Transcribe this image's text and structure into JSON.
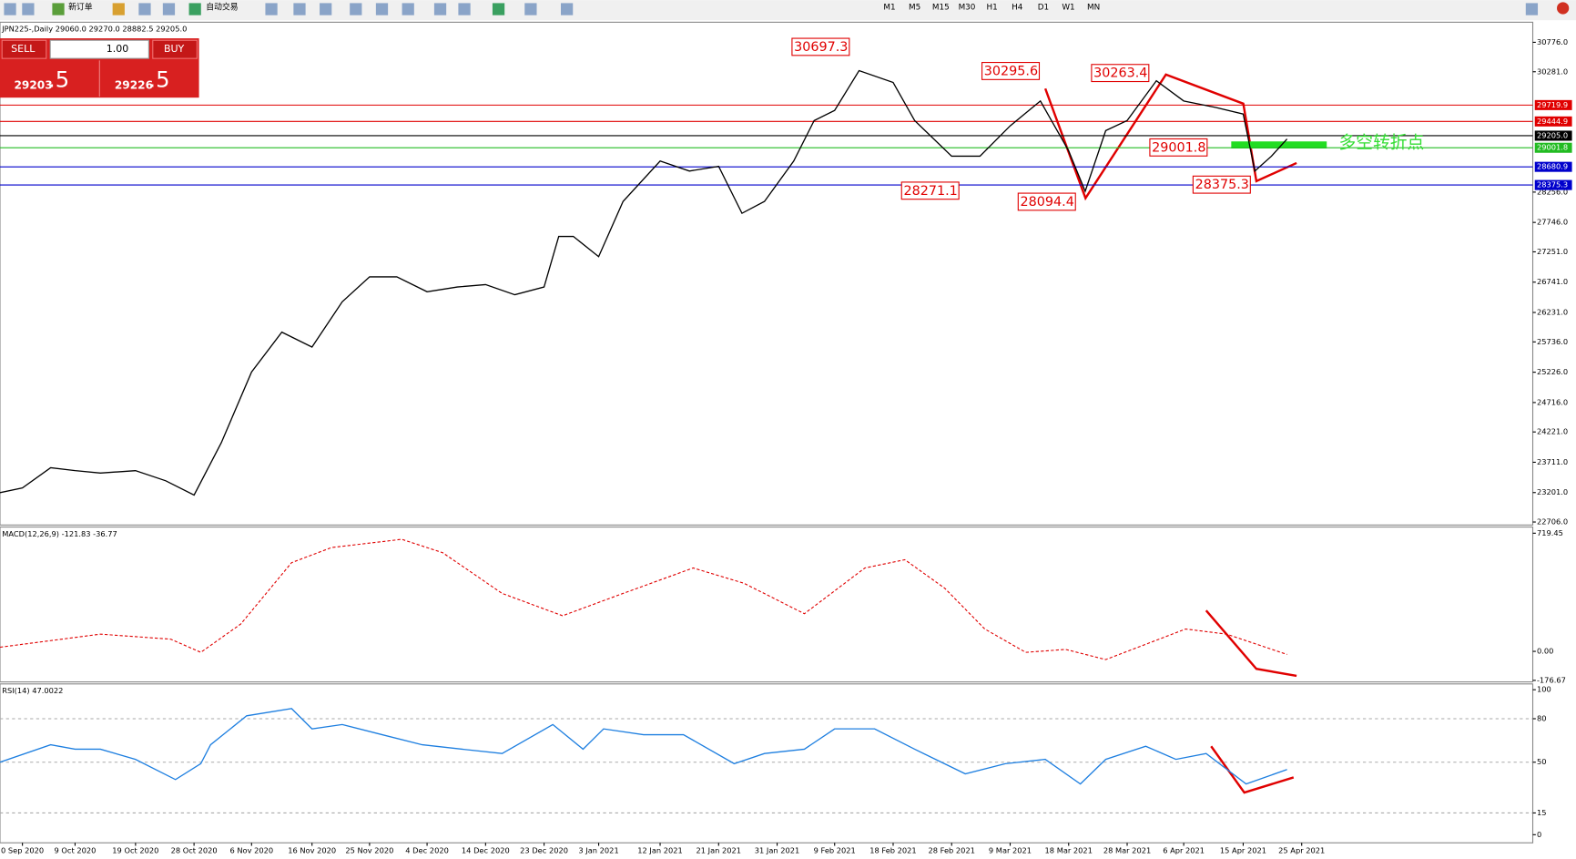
{
  "toolbar": {
    "new_order": "新订单",
    "auto_trade": "自动交易",
    "timeframes": [
      "M1",
      "M5",
      "M15",
      "M30",
      "H1",
      "H4",
      "D1",
      "W1",
      "MN"
    ]
  },
  "trade_panel": {
    "sell": "SELL",
    "lot": "1.00",
    "buy": "BUY",
    "sell_price": "29203",
    "sell_frac": ".5",
    "buy_price": "29226",
    "buy_frac": ".5"
  },
  "chart_data": [
    {
      "type": "line",
      "title": "JPN225-,Daily 29060.0 29270.0 28882.5 29205.0",
      "color": "#000000",
      "x": [
        0,
        2.3,
        5.2,
        7.7,
        10.3,
        13.9,
        17,
        19.9,
        22.7,
        25.8,
        28.9,
        32,
        35.1,
        37.9,
        40.7,
        43.8,
        46.9,
        49.8,
        52.8,
        55.8,
        57.3,
        58.8,
        61.4,
        63.9,
        67.7,
        70.7,
        73.7,
        76.1,
        78.4,
        81.4,
        83.5,
        85.6,
        88.1,
        91.6,
        93.8,
        97.6,
        100.5,
        103.6,
        106.7,
        109.6,
        111.3,
        113.4,
        115.6,
        118.6,
        121.4,
        124.7,
        127.5,
        128.7,
        130.4,
        132
      ],
      "values": [
        23200,
        23280,
        23620,
        23570,
        23530,
        23570,
        23400,
        23160,
        24040,
        25230,
        25900,
        25650,
        26410,
        26830,
        26830,
        26580,
        26660,
        26700,
        26530,
        26660,
        27510,
        27510,
        27170,
        28100,
        28780,
        28610,
        28690,
        27900,
        28100,
        28780,
        29460,
        29630,
        30300,
        30100,
        29460,
        28860,
        28860,
        29370,
        29790,
        28950,
        28270,
        29290,
        29460,
        30130,
        29790,
        29680,
        29570,
        28610,
        28860,
        29150
      ],
      "xlim": [
        0,
        157.2
      ],
      "ylim": [
        22655,
        31114
      ],
      "xticks": [
        {
          "value": 2.3,
          "label": "0 Sep 2020"
        },
        {
          "value": 7.7,
          "label": "9 Oct 2020"
        },
        {
          "value": 13.9,
          "label": "19 Oct 2020"
        },
        {
          "value": 19.9,
          "label": "28 Oct 2020"
        },
        {
          "value": 25.8,
          "label": "6 Nov 2020"
        },
        {
          "value": 32,
          "label": "16 Nov 2020"
        },
        {
          "value": 37.9,
          "label": "25 Nov 2020"
        },
        {
          "value": 43.8,
          "label": "4 Dec 2020"
        },
        {
          "value": 49.8,
          "label": "14 Dec 2020"
        },
        {
          "value": 55.8,
          "label": "23 Dec 2020"
        },
        {
          "value": 61.4,
          "label": "3 Jan 2021"
        },
        {
          "value": 67.7,
          "label": "12 Jan 2021"
        },
        {
          "value": 73.7,
          "label": "21 Jan 2021"
        },
        {
          "value": 79.7,
          "label": "31 Jan 2021"
        },
        {
          "value": 85.6,
          "label": "9 Feb 2021"
        },
        {
          "value": 91.6,
          "label": "18 Feb 2021"
        },
        {
          "value": 97.6,
          "label": "28 Feb 2021"
        },
        {
          "value": 103.6,
          "label": "9 Mar 2021"
        },
        {
          "value": 109.6,
          "label": "18 Mar 2021"
        },
        {
          "value": 115.6,
          "label": "28 Mar 2021"
        },
        {
          "value": 121.4,
          "label": "6 Apr 2021"
        },
        {
          "value": 127.5,
          "label": "15 Apr 2021"
        },
        {
          "value": 133.5,
          "label": "25 Apr 2021"
        }
      ],
      "yticks": [
        {
          "value": 30776,
          "label": "30776.0"
        },
        {
          "value": 30281,
          "label": "30281.0"
        },
        {
          "value": 28256,
          "label": "28256.0"
        },
        {
          "value": 27746,
          "label": "27746.0"
        },
        {
          "value": 27251,
          "label": "27251.0"
        },
        {
          "value": 26741,
          "label": "26741.0"
        },
        {
          "value": 26231,
          "label": "26231.0"
        },
        {
          "value": 25736,
          "label": "25736.0"
        },
        {
          "value": 25226,
          "label": "25226.0"
        },
        {
          "value": 24716,
          "label": "24716.0"
        },
        {
          "value": 24221,
          "label": "24221.0"
        },
        {
          "value": 23711,
          "label": "23711.0"
        },
        {
          "value": 23201,
          "label": "23201.0"
        },
        {
          "value": 22706,
          "label": "22706.0"
        }
      ],
      "levels": [
        {
          "value": 29719.9,
          "color": "#e00000"
        },
        {
          "value": 29444.9,
          "color": "#e00000"
        },
        {
          "value": {
            "value": 29205,
            "label": "29205.0"
          },
          "color": "#000000"
        },
        {
          "value": 29001.8,
          "color": "#22bb22"
        },
        {
          "value": 28680.9,
          "color": "#0000cc"
        },
        {
          "value": 28375.3,
          "color": "#0000cc"
        }
      ],
      "annotations": [
        30697.3,
        30295.6,
        30263.4,
        29001.8,
        28271.1,
        28094.4,
        28375.3
      ],
      "note": "多空转折点"
    },
    {
      "type": "line",
      "title": "MACD(12,26,9) -121.83 -36.77",
      "color": "#e00000",
      "x": [
        0,
        10.3,
        17.5,
        20.6,
        24.7,
        29.9,
        34,
        41.2,
        45.4,
        51.5,
        57.7,
        63.9,
        71.1,
        76.3,
        82.5,
        88.7,
        92.8,
        96.9,
        101,
        105.2,
        109.3,
        113.4,
        117.5,
        121.6,
        125.8,
        132
      ],
      "values": [
        25,
        105,
        74,
        -6,
        167,
        540,
        632,
        682,
        601,
        353,
        217,
        353,
        508,
        415,
        229,
        508,
        558,
        384,
        136,
        -6,
        12,
        -50,
        43,
        136,
        105,
        -19
      ],
      "xlim": [
        0,
        157.2
      ],
      "ylim": [
        -186,
        757
      ],
      "yticks": [
        719.45,
        {
          "value": 0,
          "label": "0.00"
        },
        -176.67
      ]
    },
    {
      "type": "line",
      "title": "RSI(14) 47.0022",
      "color": "#1e7fe0",
      "x": [
        0,
        5.2,
        7.7,
        10.3,
        13.9,
        18,
        20.6,
        21.6,
        25.3,
        29.9,
        32,
        35.1,
        39.2,
        43.3,
        47.4,
        51.5,
        56.7,
        59.8,
        61.9,
        66,
        70.1,
        75.3,
        78.4,
        82.5,
        85.6,
        89.7,
        93.8,
        99,
        103.1,
        107.2,
        110.8,
        113.4,
        117.5,
        120.6,
        123.7,
        127.8,
        132
      ],
      "values": [
        50,
        62,
        59,
        59,
        52,
        38,
        49,
        62,
        82,
        87,
        73,
        76,
        69,
        62,
        59,
        56,
        76,
        59,
        73,
        69,
        69,
        49,
        56,
        59,
        73,
        73,
        59,
        42,
        49,
        52,
        35,
        52,
        61,
        52,
        56,
        35,
        45
      ],
      "xlim": [
        0,
        157.2
      ],
      "ylim": [
        -5.6,
        104
      ],
      "yticks": [
        100,
        80,
        50,
        15,
        0
      ]
    }
  ]
}
